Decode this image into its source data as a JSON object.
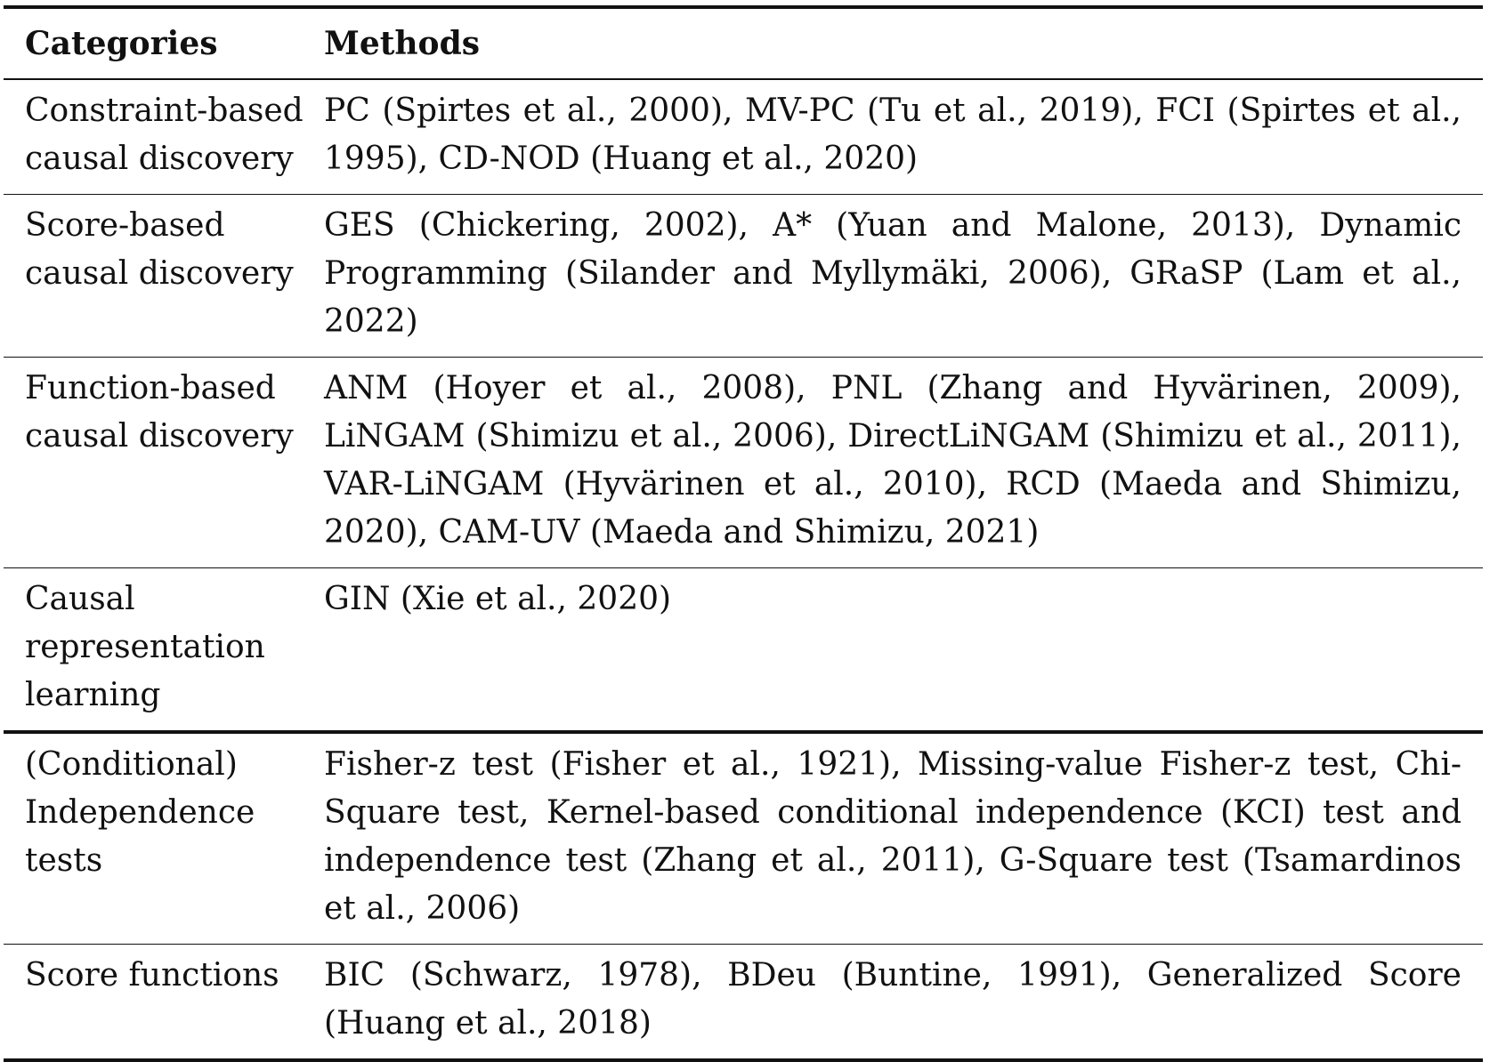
{
  "table": {
    "headers": {
      "categories": "Categories",
      "methods": "Methods"
    },
    "rows": [
      {
        "category": "Constraint-based causal discovery",
        "methods": "PC (Spirtes et al., 2000), MV-PC (Tu et al., 2019), FCI (Spirtes et al., 1995), CD-NOD (Huang et al., 2020)"
      },
      {
        "category": "Score-based causal discovery",
        "methods": "GES (Chickering, 2002), A* (Yuan and Malone, 2013), Dynamic Programming (Silander and Myllymäki, 2006), GRaSP (Lam et al., 2022)"
      },
      {
        "category": "Function-based causal discovery",
        "methods": "ANM (Hoyer et al., 2008), PNL (Zhang and Hyvärinen, 2009), LiNGAM (Shimizu et al., 2006), DirectLiNGAM (Shimizu et al., 2011), VAR-LiNGAM (Hyvärinen et al., 2010), RCD (Maeda and Shimizu, 2020), CAM-UV (Maeda and Shimizu, 2021)"
      },
      {
        "category": "Causal representation learning",
        "methods": "GIN (Xie et al., 2020)"
      },
      {
        "category": "(Conditional) Independence tests",
        "methods": "Fisher-z test (Fisher et al., 1921), Missing-value Fisher-z test, Chi-Square test, Kernel-based conditional independence (KCI) test and independence test (Zhang et al., 2011), G-Square test (Tsamardinos et al., 2006)"
      },
      {
        "category": "Score functions",
        "methods": "BIC (Schwarz, 1978), BDeu (Buntine, 1991), Generalized Score (Huang et al., 2018)"
      }
    ]
  }
}
